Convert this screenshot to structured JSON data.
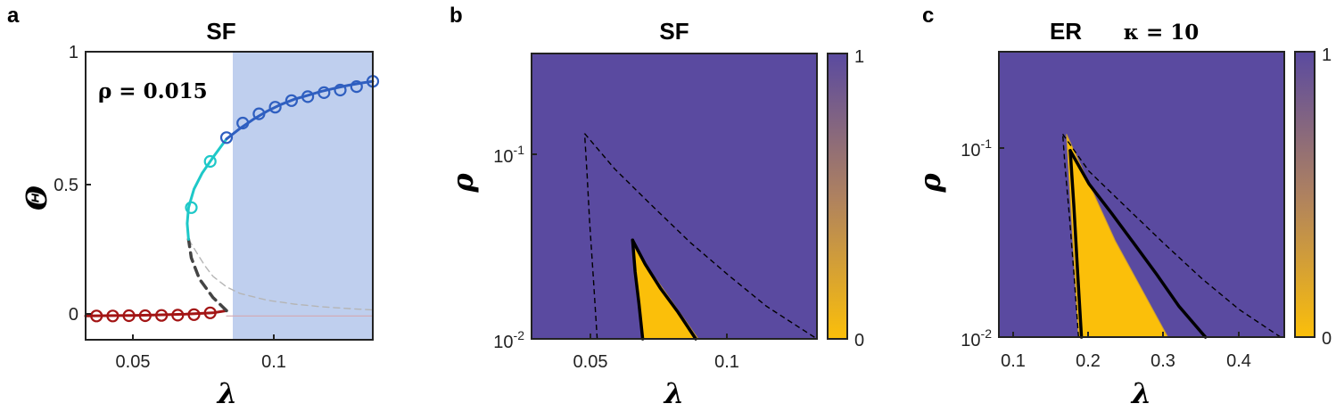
{
  "panels": {
    "a": {
      "label": "a",
      "title": "SF",
      "annotation": "ρ = 0.015",
      "xlabel": "λ",
      "ylabel": "Θ",
      "xticks": [
        "0.05",
        "0.1"
      ],
      "yticks": [
        "0",
        "0.5",
        "1"
      ]
    },
    "b": {
      "label": "b",
      "title": "SF",
      "xlabel": "λ",
      "ylabel": "ρ",
      "xticks": [
        "0.05",
        "0.1"
      ],
      "cbar_ticks": [
        "1",
        "0"
      ]
    },
    "c": {
      "label": "c",
      "title_left": "ER",
      "title_right": "κ = 10",
      "xlabel": "λ",
      "ylabel": "ρ",
      "xticks": [
        "0.1",
        "0.2",
        "0.3",
        "0.4"
      ],
      "cbar_ticks": [
        "1",
        "0"
      ]
    },
    "ytick_base": "10",
    "ytick_exp": [
      "-1",
      "-2"
    ]
  },
  "colors": {
    "stable_low": "#a31515",
    "unstable": "#444444",
    "stable_mid": "#1ec8c8",
    "stable_high": "#2f5fc0",
    "shade": "#bfcfee",
    "heat_high": "#5a4aa0",
    "heat_low": "#fbbf0a"
  },
  "chart_data": [
    {
      "panel": "a",
      "type": "line",
      "xlim": [
        0.033,
        0.139
      ],
      "ylim": [
        -0.09,
        1.0
      ],
      "shaded_region": {
        "x": [
          0.085,
          0.139
        ]
      },
      "series": [
        {
          "style": "solid-low",
          "x": [
            0.033,
            0.04,
            0.05,
            0.06,
            0.07,
            0.08,
            0.085
          ],
          "y": [
            0.0,
            0.001,
            0.002,
            0.004,
            0.007,
            0.012,
            0.02
          ]
        },
        {
          "style": "dashed-unstable",
          "x": [
            0.085,
            0.08,
            0.075,
            0.072,
            0.071
          ],
          "y": [
            0.02,
            0.07,
            0.14,
            0.22,
            0.29
          ]
        },
        {
          "style": "solid-mid",
          "x": [
            0.071,
            0.0705,
            0.071,
            0.073,
            0.076,
            0.08,
            0.085
          ],
          "y": [
            0.29,
            0.35,
            0.41,
            0.48,
            0.54,
            0.6,
            0.67
          ]
        },
        {
          "style": "solid-high",
          "x": [
            0.085,
            0.09,
            0.095,
            0.1,
            0.105,
            0.11,
            0.115,
            0.12,
            0.125,
            0.13,
            0.135,
            0.139
          ],
          "y": [
            0.67,
            0.71,
            0.745,
            0.775,
            0.8,
            0.82,
            0.835,
            0.85,
            0.862,
            0.873,
            0.882,
            0.888
          ]
        },
        {
          "style": "thin-dashed",
          "x": [
            0.071,
            0.074,
            0.077,
            0.08,
            0.085,
            0.09,
            0.1,
            0.11,
            0.12,
            0.13,
            0.139
          ],
          "y": [
            0.29,
            0.24,
            0.19,
            0.15,
            0.11,
            0.085,
            0.06,
            0.045,
            0.035,
            0.028,
            0.023
          ]
        },
        {
          "style": "thin-flat",
          "x": [
            0.085,
            0.139
          ],
          "y": [
            0.0,
            0.0
          ]
        }
      ],
      "markers": [
        {
          "style": "low",
          "x": [
            0.037,
            0.043,
            0.049,
            0.055,
            0.061,
            0.067,
            0.073,
            0.079
          ],
          "y": [
            0.0,
            0.0,
            0.001,
            0.001,
            0.002,
            0.003,
            0.005,
            0.012
          ]
        },
        {
          "style": "mid",
          "x": [
            0.072,
            0.079
          ],
          "y": [
            0.41,
            0.585
          ]
        },
        {
          "style": "high",
          "x": [
            0.085,
            0.091,
            0.097,
            0.103,
            0.109,
            0.115,
            0.121,
            0.127,
            0.133,
            0.139
          ],
          "y": [
            0.675,
            0.73,
            0.765,
            0.79,
            0.815,
            0.83,
            0.845,
            0.855,
            0.868,
            0.888
          ]
        }
      ]
    },
    {
      "panel": "b",
      "type": "heatmap",
      "xlim": [
        0.027,
        0.14
      ],
      "ylim": [
        0.0098,
        0.3
      ],
      "yscale": "log",
      "colorbar": [
        0,
        1
      ],
      "low_region": [
        [
          0.067,
          0.03
        ],
        [
          0.071,
          0.0098
        ],
        [
          0.093,
          0.0098
        ]
      ],
      "dashed_curves": [
        {
          "x": [
            0.053,
            0.0515,
            0.05,
            0.049,
            0.048
          ],
          "y": [
            0.0098,
            0.02,
            0.04,
            0.07,
            0.115
          ]
        },
        {
          "x": [
            0.048,
            0.06,
            0.075,
            0.09,
            0.105,
            0.12,
            0.14
          ],
          "y": [
            0.115,
            0.075,
            0.048,
            0.031,
            0.021,
            0.0145,
            0.0098
          ]
        }
      ],
      "solid_curves": [
        {
          "x": [
            0.071,
            0.0695,
            0.068,
            0.067
          ],
          "y": [
            0.0098,
            0.015,
            0.022,
            0.032
          ]
        },
        {
          "x": [
            0.067,
            0.072,
            0.078,
            0.085,
            0.092
          ],
          "y": [
            0.032,
            0.024,
            0.018,
            0.0135,
            0.0098
          ]
        }
      ]
    },
    {
      "panel": "c",
      "type": "heatmap",
      "xlim": [
        0.08,
        0.46
      ],
      "ylim": [
        0.0093,
        0.3
      ],
      "yscale": "log",
      "colorbar": [
        0,
        1
      ],
      "low_region": [
        [
          0.17,
          0.11
        ],
        [
          0.186,
          0.0093
        ],
        [
          0.305,
          0.0093
        ],
        [
          0.235,
          0.03
        ]
      ],
      "dashed_curves": [
        {
          "x": [
            0.186,
            0.18,
            0.174,
            0.168,
            0.165
          ],
          "y": [
            0.0093,
            0.02,
            0.04,
            0.075,
            0.11
          ]
        },
        {
          "x": [
            0.165,
            0.2,
            0.25,
            0.3,
            0.35,
            0.4,
            0.455
          ],
          "y": [
            0.11,
            0.07,
            0.045,
            0.029,
            0.019,
            0.013,
            0.0093
          ]
        }
      ],
      "solid_curves": [
        {
          "x": [
            0.19,
            0.185,
            0.18,
            0.175
          ],
          "y": [
            0.0093,
            0.02,
            0.045,
            0.09
          ]
        },
        {
          "x": [
            0.175,
            0.2,
            0.23,
            0.26,
            0.29,
            0.32,
            0.355
          ],
          "y": [
            0.09,
            0.06,
            0.042,
            0.029,
            0.02,
            0.0135,
            0.0093
          ]
        }
      ]
    }
  ]
}
